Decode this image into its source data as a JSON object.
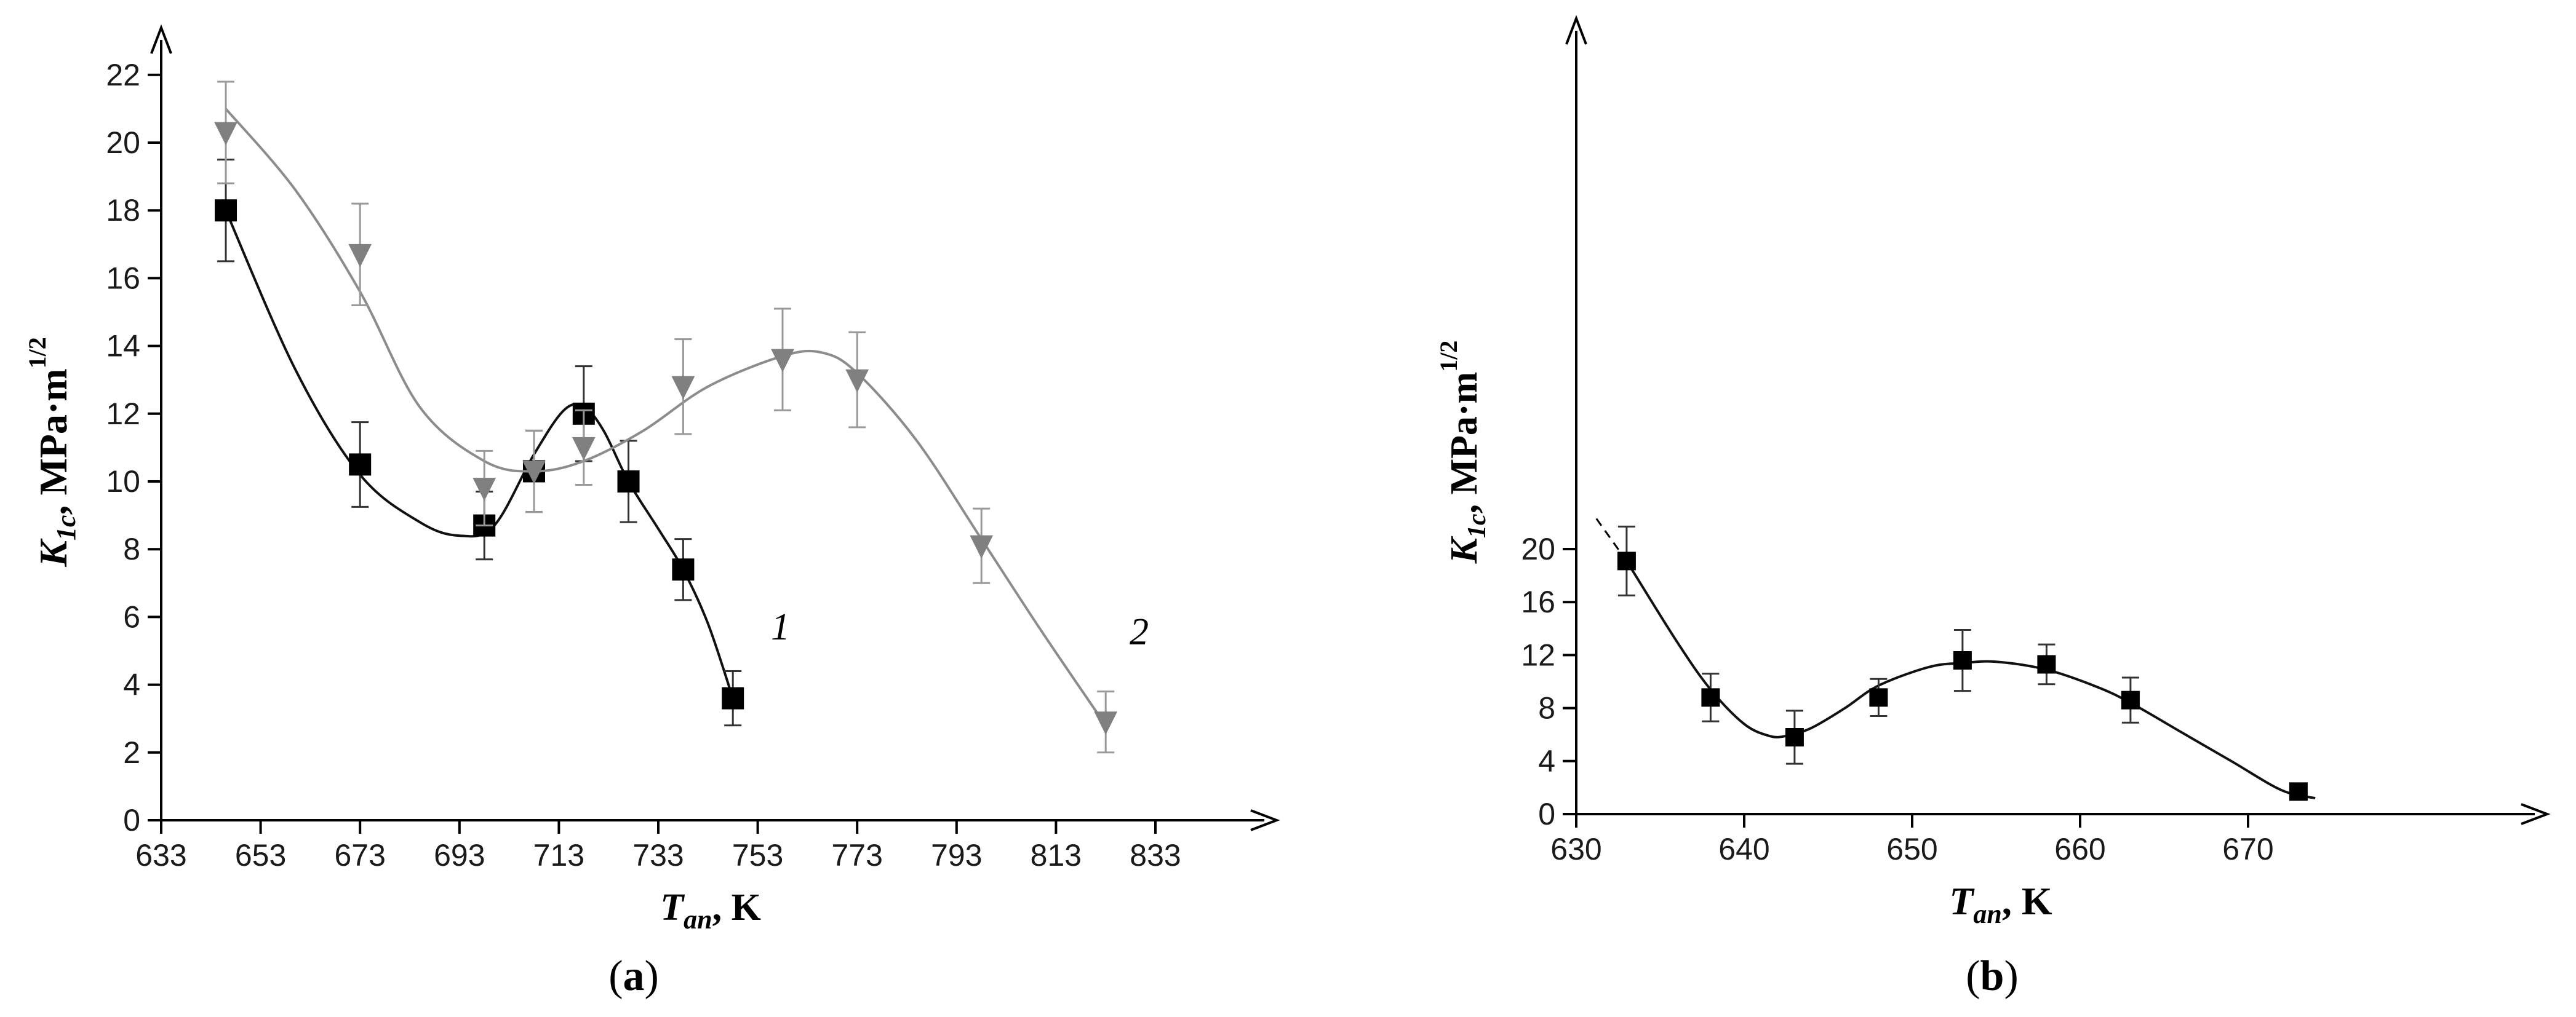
{
  "panels": [
    {
      "id": "a",
      "label_open": "(",
      "label_letter": "a",
      "label_close": ")",
      "ylabel_main": "K",
      "ylabel_sub": "1c",
      "ylabel_unit": ", MPa·m",
      "ylabel_sup": "1/2",
      "xlabel_main": "T",
      "xlabel_sub": "an",
      "xlabel_unit": ", K"
    },
    {
      "id": "b",
      "label_open": "(",
      "label_letter": "b",
      "label_close": ")",
      "ylabel_main": "K",
      "ylabel_sub": "1c",
      "ylabel_unit": ", MPa·m",
      "ylabel_sup": "1/2",
      "xlabel_main": "T",
      "xlabel_sub": "an",
      "xlabel_unit": ", K"
    }
  ],
  "chart_data": [
    {
      "type": "scatter",
      "xlabel": "Tan, K",
      "ylabel": "K1c, MPa·m1/2",
      "xlim": [
        633,
        843
      ],
      "ylim": [
        0,
        23
      ],
      "xticks": [
        633,
        653,
        673,
        693,
        713,
        733,
        753,
        773,
        793,
        813,
        833
      ],
      "yticks": [
        0,
        2,
        4,
        6,
        8,
        10,
        12,
        14,
        16,
        18,
        20,
        22
      ],
      "grid": false,
      "series": [
        {
          "name": "1",
          "color": "#000000",
          "marker": "square",
          "x": [
            646,
            673,
            698,
            708,
            718,
            727,
            738,
            748
          ],
          "y": [
            18.0,
            10.5,
            8.7,
            10.3,
            12.0,
            10.0,
            7.4,
            3.6
          ],
          "err": [
            1.5,
            1.25,
            1.0,
            1.2,
            1.4,
            1.2,
            0.9,
            0.8
          ],
          "curve_x": [
            646,
            660,
            673,
            685,
            693,
            700,
            708,
            714,
            718,
            722,
            727,
            733,
            738,
            743,
            748
          ],
          "curve_y": [
            18.0,
            13.3,
            10.2,
            8.8,
            8.4,
            8.7,
            10.8,
            12.1,
            12.2,
            11.5,
            10.0,
            8.6,
            7.4,
            5.8,
            3.6
          ]
        },
        {
          "name": "2",
          "color": "#808080",
          "marker": "triangle-down",
          "x": [
            646,
            673,
            698,
            708,
            718,
            738,
            758,
            773,
            798,
            823
          ],
          "y": [
            20.3,
            16.7,
            9.8,
            10.3,
            11.0,
            12.8,
            13.6,
            13.0,
            8.1,
            2.9
          ],
          "err": [
            1.5,
            1.5,
            1.1,
            1.2,
            1.1,
            1.4,
            1.5,
            1.4,
            1.1,
            0.9
          ],
          "curve_x": [
            646,
            660,
            673,
            685,
            698,
            708,
            718,
            730,
            743,
            758,
            766,
            773,
            785,
            798,
            810,
            823
          ],
          "curve_y": [
            21.0,
            18.6,
            15.6,
            12.2,
            10.6,
            10.3,
            10.6,
            11.5,
            12.8,
            13.7,
            13.8,
            13.2,
            11.2,
            8.3,
            5.6,
            2.8
          ]
        }
      ],
      "annotations": [
        "1",
        "2"
      ]
    },
    {
      "type": "scatter",
      "xlabel": "Tan, K",
      "ylabel": "K1c, MPa·m1/2",
      "xlim": [
        630,
        676
      ],
      "ylim": [
        0,
        24
      ],
      "xticks": [
        630,
        640,
        650,
        660,
        670
      ],
      "yticks": [
        0,
        4,
        8,
        12,
        16,
        20
      ],
      "grid": false,
      "series": [
        {
          "color": "#000000",
          "marker": "square",
          "x": [
            633,
            638,
            643,
            648,
            653,
            658,
            663,
            673
          ],
          "y": [
            19.1,
            8.8,
            5.8,
            8.8,
            11.6,
            11.3,
            8.6,
            1.7
          ],
          "err": [
            2.6,
            1.8,
            2.0,
            1.4,
            2.3,
            1.5,
            1.7,
            0.6
          ],
          "curve_x": [
            633,
            636,
            638,
            640,
            641.5,
            642.5,
            644,
            646,
            648,
            651,
            653,
            655,
            658,
            661,
            663,
            666,
            669,
            672,
            674
          ],
          "curve_y": [
            19.1,
            13.0,
            9.4,
            6.8,
            5.9,
            5.9,
            6.5,
            8.0,
            9.7,
            11.1,
            11.4,
            11.5,
            10.9,
            9.6,
            8.4,
            6.2,
            4.0,
            1.8,
            1.2
          ],
          "extrap_x": [
            631.2,
            633
          ],
          "extrap_y": [
            22.3,
            19.1
          ]
        }
      ]
    }
  ]
}
